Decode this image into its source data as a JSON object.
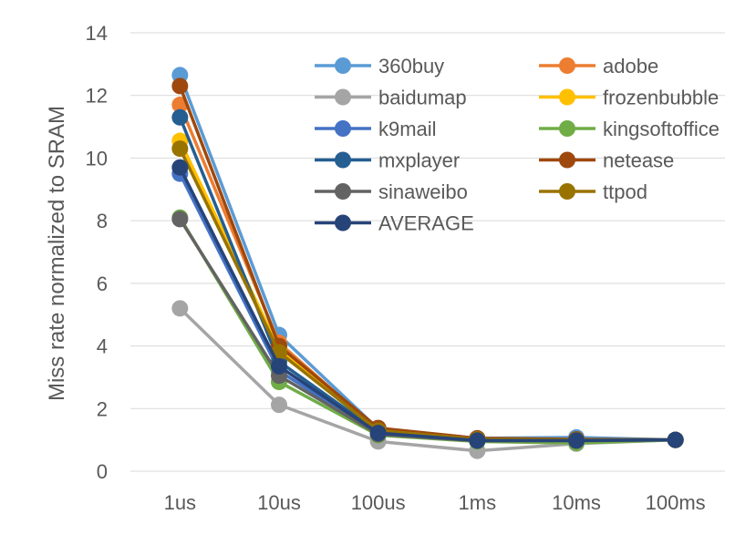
{
  "chart_data": {
    "type": "line",
    "title": "",
    "xlabel": "",
    "ylabel": "Miss rate normalized to SRAM",
    "ylim": [
      0,
      14
    ],
    "y_ticks": [
      0,
      2,
      4,
      6,
      8,
      10,
      12,
      14
    ],
    "categories": [
      "1us",
      "10us",
      "100us",
      "1ms",
      "10ms",
      "100ms"
    ],
    "grid": true,
    "legend_position": "top-right",
    "series": [
      {
        "name": "360buy",
        "color": "#5b9bd5",
        "values": [
          12.65,
          4.35,
          1.35,
          1.05,
          1.08,
          1.0
        ]
      },
      {
        "name": "adobe",
        "color": "#ed7d31",
        "values": [
          11.7,
          4.1,
          1.3,
          1.02,
          1.0,
          1.0
        ]
      },
      {
        "name": "baidumap",
        "color": "#a5a5a5",
        "values": [
          5.2,
          2.12,
          0.95,
          0.65,
          0.88,
          1.0
        ]
      },
      {
        "name": "frozenbubble",
        "color": "#ffc000",
        "values": [
          10.55,
          3.9,
          1.28,
          1.0,
          0.98,
          1.0
        ]
      },
      {
        "name": "k9mail",
        "color": "#4472c4",
        "values": [
          9.5,
          3.2,
          1.2,
          0.98,
          0.98,
          1.0
        ]
      },
      {
        "name": "kingsoftoffice",
        "color": "#70ad47",
        "values": [
          8.1,
          2.85,
          1.15,
          0.95,
          0.9,
          1.0
        ]
      },
      {
        "name": "mxplayer",
        "color": "#255e91",
        "values": [
          11.3,
          3.5,
          1.25,
          1.0,
          1.0,
          1.0
        ]
      },
      {
        "name": "netease",
        "color": "#9e480e",
        "values": [
          12.3,
          4.0,
          1.38,
          1.05,
          1.02,
          1.0
        ]
      },
      {
        "name": "sinaweibo",
        "color": "#636363",
        "values": [
          8.05,
          3.05,
          1.18,
          0.97,
          0.97,
          1.0
        ]
      },
      {
        "name": "ttpod",
        "color": "#997300",
        "values": [
          10.3,
          3.8,
          1.3,
          1.02,
          1.0,
          1.0
        ]
      },
      {
        "name": "AVERAGE",
        "color": "#264478",
        "values": [
          9.7,
          3.35,
          1.22,
          0.98,
          0.98,
          1.0
        ]
      }
    ]
  }
}
